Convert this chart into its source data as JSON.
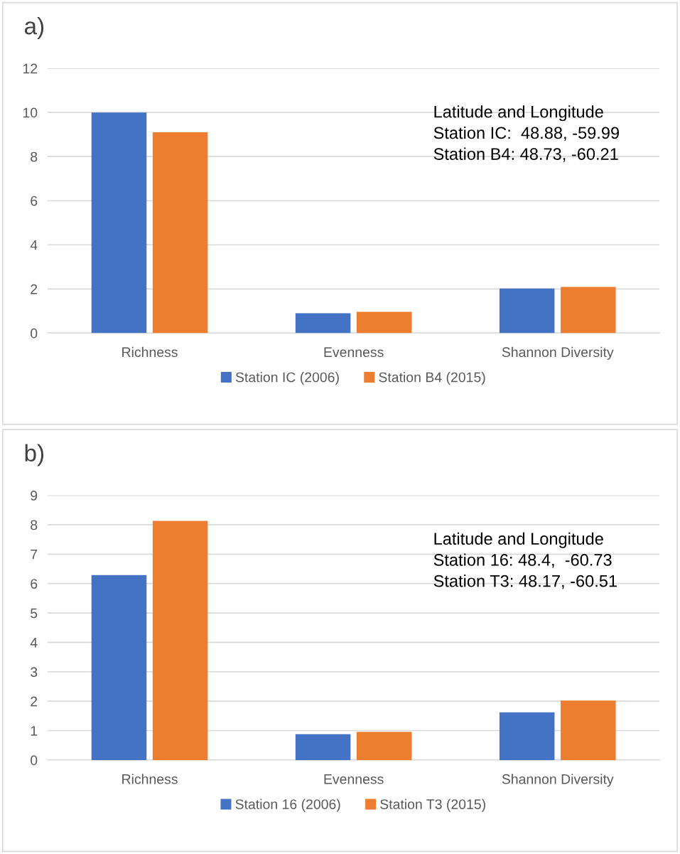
{
  "chart_data": [
    {
      "type": "bar",
      "title": "a)",
      "categories": [
        "Richness",
        "Evenness",
        "Shannon Diversity"
      ],
      "series": [
        {
          "name": "Station IC (2006)",
          "color": "#4472c4",
          "values": [
            10,
            0.9,
            2.02
          ]
        },
        {
          "name": "Station B4 (2015)",
          "color": "#ed7d31",
          "values": [
            9.1,
            0.96,
            2.09
          ]
        }
      ],
      "ylim": [
        0,
        12
      ],
      "yticks": [
        0,
        2,
        4,
        6,
        8,
        10,
        12
      ],
      "grid": "y",
      "legend": "bottom",
      "annotations": [
        "Latitude and Longitude\nStation IC:  48.88, -59.99\nStation B4: 48.73, -60.21"
      ]
    },
    {
      "type": "bar",
      "title": "b)",
      "categories": [
        "Richness",
        "Evenness",
        "Shannon Diversity"
      ],
      "series": [
        {
          "name": "Station 16 (2006)",
          "color": "#4472c4",
          "values": [
            6.29,
            0.88,
            1.62
          ]
        },
        {
          "name": "Station T3 (2015)",
          "color": "#ed7d31",
          "values": [
            8.13,
            0.96,
            2.02
          ]
        }
      ],
      "ylim": [
        0,
        9
      ],
      "yticks": [
        0,
        1,
        2,
        3,
        4,
        5,
        6,
        7,
        8,
        9
      ],
      "grid": "y",
      "legend": "bottom",
      "annotations": [
        "Latitude and Longitude\nStation 16: 48.4,  -60.73\nStation T3: 48.17, -60.51"
      ]
    }
  ]
}
